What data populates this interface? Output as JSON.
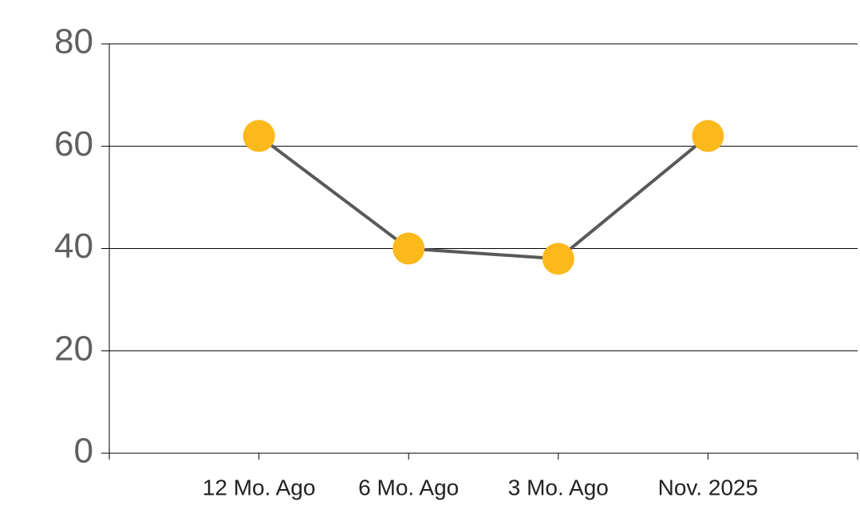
{
  "chart_data": {
    "type": "line",
    "categories": [
      "12 Mo. Ago",
      "6 Mo. Ago",
      "3 Mo. Ago",
      "Nov. 2025"
    ],
    "series": [
      {
        "values": [
          62,
          40,
          38,
          62
        ],
        "color": "#595959",
        "marker_color": "#fbb91c"
      }
    ],
    "ylim": [
      0,
      80
    ],
    "yticks": [
      0,
      20,
      40,
      60,
      80
    ],
    "grid": true
  }
}
